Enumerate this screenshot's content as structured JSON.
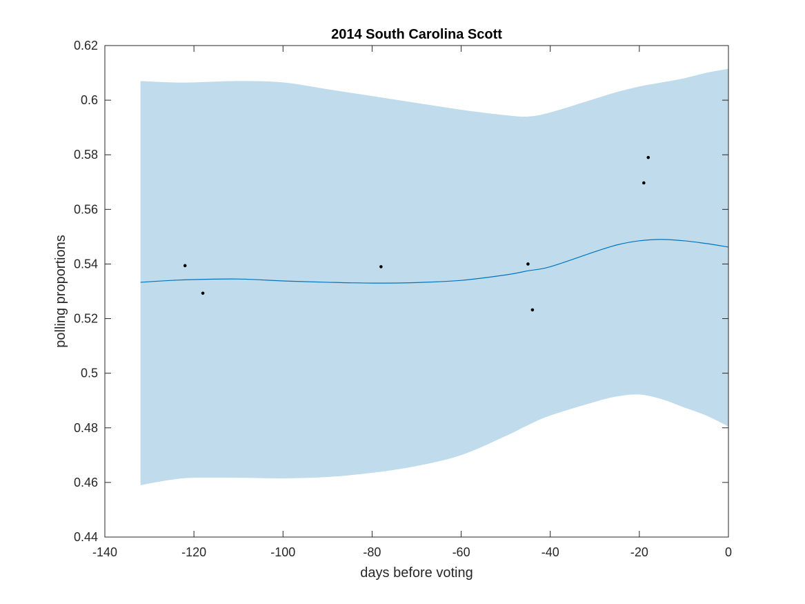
{
  "chart_data": {
    "type": "line",
    "title": "2014 South Carolina Scott",
    "xlabel": "days before voting",
    "ylabel": "polling proportions",
    "xlim": [
      -140,
      0
    ],
    "ylim": [
      0.44,
      0.62
    ],
    "xticks": [
      -140,
      -120,
      -100,
      -80,
      -60,
      -40,
      -20,
      0
    ],
    "xtick_labels": [
      "-140",
      "-120",
      "-100",
      "-80",
      "-60",
      "-40",
      "-20",
      "0"
    ],
    "yticks": [
      0.44,
      0.46,
      0.48,
      0.5,
      0.52,
      0.54,
      0.56,
      0.58,
      0.6,
      0.62
    ],
    "ytick_labels": [
      "0.44",
      "0.46",
      "0.48",
      "0.5",
      "0.52",
      "0.54",
      "0.56",
      "0.58",
      "0.6",
      "0.62"
    ],
    "grid": false,
    "colors": {
      "band": "#c0dcec",
      "line": "#0072bd",
      "points": "#000000",
      "axes": "#262626"
    },
    "band": {
      "x": [
        -132,
        -125,
        -120,
        -110,
        -100,
        -90,
        -80,
        -70,
        -60,
        -50,
        -45,
        -40,
        -30,
        -25,
        -20,
        -15,
        -10,
        -5,
        0
      ],
      "upper": [
        0.607,
        0.6065,
        0.6065,
        0.607,
        0.6065,
        0.604,
        0.6015,
        0.599,
        0.5965,
        0.5945,
        0.594,
        0.5955,
        0.6005,
        0.603,
        0.605,
        0.6065,
        0.608,
        0.61,
        0.6115
      ],
      "lower": [
        0.459,
        0.461,
        0.4617,
        0.4617,
        0.4615,
        0.462,
        0.4635,
        0.466,
        0.47,
        0.477,
        0.481,
        0.4845,
        0.4895,
        0.4915,
        0.4922,
        0.4905,
        0.4875,
        0.4845,
        0.4805
      ]
    },
    "series": [
      {
        "x": [
          -132,
          -125,
          -120,
          -110,
          -100,
          -90,
          -80,
          -70,
          -60,
          -50,
          -45,
          -40,
          -30,
          -25,
          -20,
          -15,
          -10,
          -5,
          0
        ],
        "values": [
          0.5333,
          0.534,
          0.5343,
          0.5345,
          0.5338,
          0.5333,
          0.533,
          0.5332,
          0.534,
          0.536,
          0.5375,
          0.539,
          0.5445,
          0.547,
          0.5485,
          0.549,
          0.5485,
          0.5475,
          0.5462
        ]
      }
    ],
    "points": {
      "x": [
        -122,
        -118,
        -78,
        -45,
        -44,
        -19,
        -18
      ],
      "y": [
        0.5394,
        0.5293,
        0.539,
        0.54,
        0.5232,
        0.5697,
        0.579
      ]
    }
  }
}
